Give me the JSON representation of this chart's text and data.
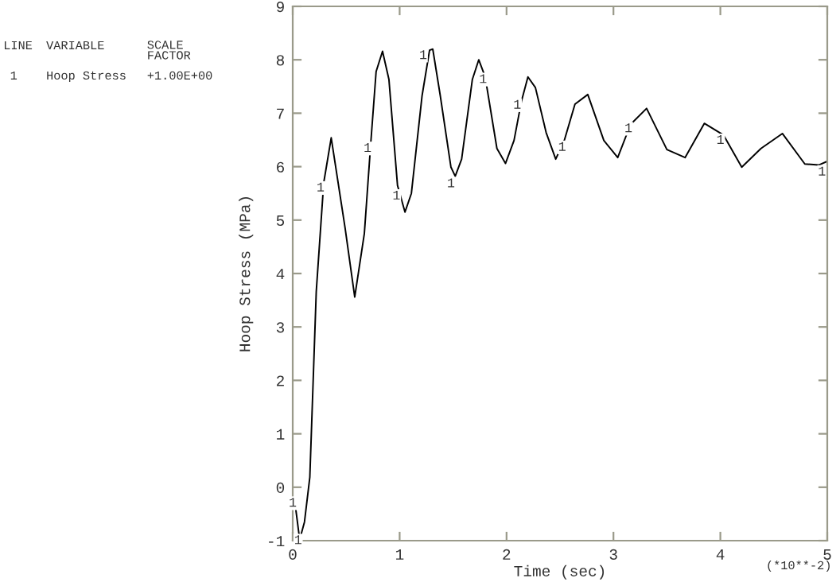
{
  "chart_data": {
    "type": "line",
    "xlabel": "Time (sec)",
    "ylabel": "Hoop Stress (MPa)",
    "xlim": [
      0,
      5
    ],
    "ylim": [
      -1,
      9
    ],
    "xticks": [
      0,
      1,
      2,
      3,
      4,
      5
    ],
    "yticks": [
      -1,
      0,
      1,
      2,
      3,
      4,
      5,
      6,
      7,
      8,
      9
    ],
    "grid": false,
    "legend": false,
    "marker": "none",
    "line_style": "solid",
    "series": [
      {
        "name": "Hoop Stress",
        "color": "#000000",
        "x": [
          0.015,
          0.065,
          0.11,
          0.16,
          0.22,
          0.29,
          0.36,
          0.49,
          0.58,
          0.67,
          0.73,
          0.78,
          0.84,
          0.9,
          0.98,
          1.05,
          1.11,
          1.21,
          1.28,
          1.31,
          1.38,
          1.48,
          1.52,
          1.58,
          1.68,
          1.74,
          1.8,
          1.91,
          1.99,
          2.07,
          2.14,
          2.2,
          2.27,
          2.37,
          2.46,
          2.54,
          2.64,
          2.76,
          2.91,
          3.04,
          3.16,
          3.31,
          3.5,
          3.67,
          3.85,
          4.03,
          4.2,
          4.38,
          4.58,
          4.79,
          4.92,
          5.0
        ],
        "values": [
          -0.2,
          -0.98,
          -0.65,
          0.19,
          3.66,
          5.7,
          6.54,
          4.85,
          3.56,
          4.75,
          6.44,
          7.78,
          8.16,
          7.63,
          5.65,
          5.15,
          5.5,
          7.33,
          8.18,
          8.2,
          7.33,
          5.99,
          5.82,
          6.14,
          7.63,
          8.0,
          7.68,
          6.34,
          6.06,
          6.49,
          7.23,
          7.68,
          7.48,
          6.64,
          6.14,
          6.49,
          7.17,
          7.35,
          6.49,
          6.17,
          6.79,
          7.09,
          6.32,
          6.17,
          6.81,
          6.59,
          5.99,
          6.34,
          6.62,
          6.05,
          6.03,
          6.1
        ]
      }
    ],
    "annotations": [
      "LINE",
      "VARIABLE",
      "SCALE\nFACTOR",
      "1",
      "+1.00E+00",
      "(*10**-2)",
      {
        "text": "1",
        "x": 0.0,
        "y": -0.3
      },
      {
        "text": "1",
        "x": 0.05,
        "y": -1.0
      },
      {
        "text": "1",
        "x": 0.26,
        "y": 5.6
      },
      {
        "text": "1",
        "x": 0.7,
        "y": 6.34
      },
      {
        "text": "1",
        "x": 0.97,
        "y": 5.45
      },
      {
        "text": "1",
        "x": 1.22,
        "y": 8.08
      },
      {
        "text": "1",
        "x": 1.48,
        "y": 5.68
      },
      {
        "text": "1",
        "x": 1.78,
        "y": 7.63
      },
      {
        "text": "1",
        "x": 2.1,
        "y": 7.15
      },
      {
        "text": "1",
        "x": 2.52,
        "y": 6.36
      },
      {
        "text": "1",
        "x": 3.14,
        "y": 6.71
      },
      {
        "text": "1",
        "x": 4.0,
        "y": 6.49
      },
      {
        "text": "1",
        "x": 4.95,
        "y": 5.9
      }
    ]
  }
}
